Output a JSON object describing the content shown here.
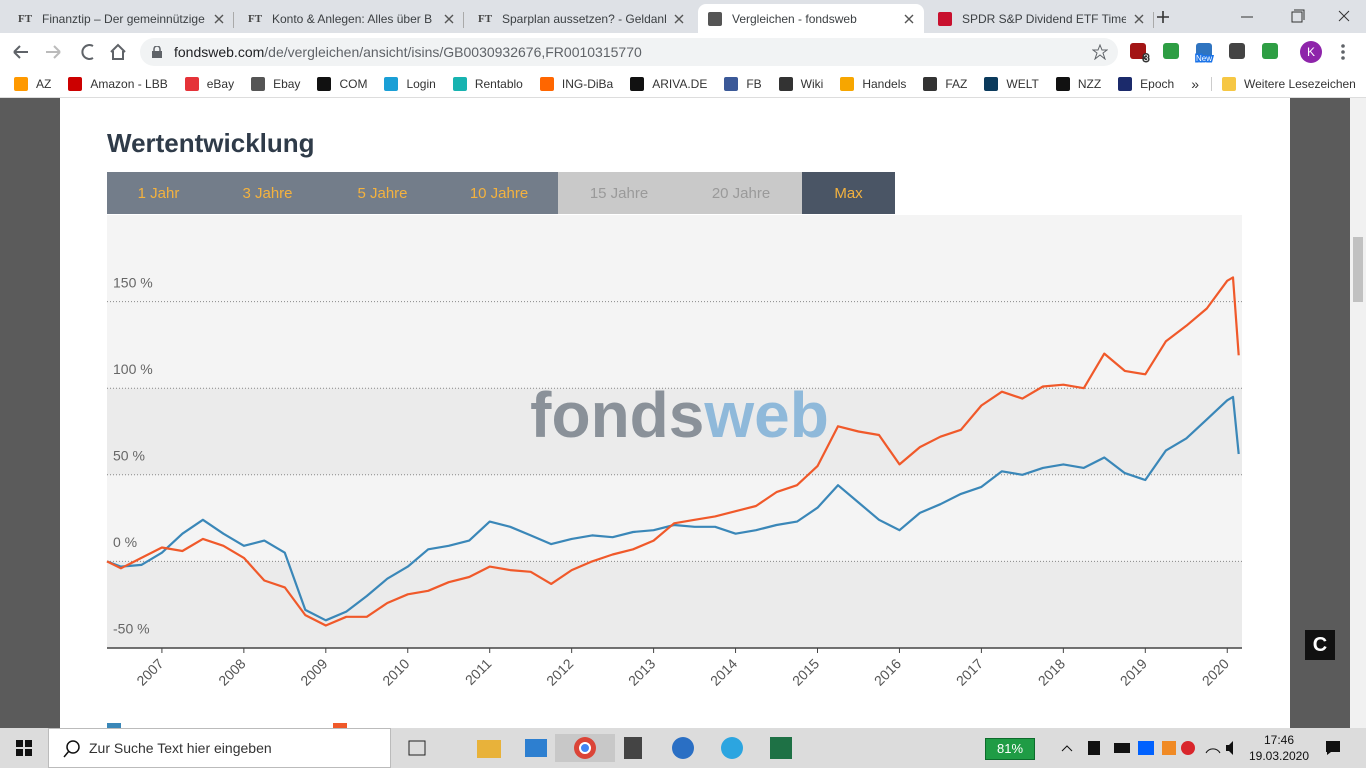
{
  "browser": {
    "tabs": [
      {
        "icon": "FT",
        "title": "Finanztip – Der gemeinnützige"
      },
      {
        "icon": "FT",
        "title": "Konto & Anlegen: Alles über B"
      },
      {
        "icon": "FT",
        "title": "Sparplan aussetzen? - Geldanla"
      },
      {
        "title": "Vergleichen - fondsweb"
      },
      {
        "title": "SPDR S&P Dividend ETF Times"
      }
    ],
    "active_tab": 3,
    "url_host": "fondsweb.com",
    "url_path": "/de/vergleichen/ansicht/isins/GB0030932676,FR0010315770",
    "extension_badges": [
      "3",
      "New"
    ],
    "profile": "K",
    "bookmarks": [
      "AZ",
      "Amazon - LBB",
      "eBay",
      "Ebay",
      "COM",
      "Login",
      "Rentablo",
      "ING-DiBa",
      "ARIVA.DE",
      "FB",
      "Wiki",
      "Handels",
      "FAZ",
      "WELT",
      "NZZ",
      "Epoch"
    ],
    "bookmarks_more": "»",
    "other_bookmarks": "Weitere Lesezeichen"
  },
  "page": {
    "title": "Wertentwicklung",
    "periods": [
      {
        "label": "1 Jahr",
        "state": "available"
      },
      {
        "label": "3 Jahre",
        "state": "available"
      },
      {
        "label": "5 Jahre",
        "state": "available"
      },
      {
        "label": "10 Jahre",
        "state": "available"
      },
      {
        "label": "15 Jahre",
        "state": "disabled"
      },
      {
        "label": "20 Jahre",
        "state": "disabled"
      },
      {
        "label": "Max",
        "state": "active"
      }
    ],
    "widget": "C"
  },
  "chart_data": {
    "type": "line",
    "watermark": [
      "fonds",
      "web"
    ],
    "x": [
      2006.33,
      2006.5,
      2006.75,
      2007,
      2007.25,
      2007.5,
      2007.75,
      2008,
      2008.25,
      2008.5,
      2008.75,
      2009,
      2009.25,
      2009.5,
      2009.75,
      2010,
      2010.25,
      2010.5,
      2010.75,
      2011,
      2011.25,
      2011.5,
      2011.75,
      2012,
      2012.25,
      2012.5,
      2012.75,
      2013,
      2013.25,
      2013.5,
      2013.75,
      2014,
      2014.25,
      2014.5,
      2014.75,
      2015,
      2015.25,
      2015.5,
      2015.75,
      2016,
      2016.25,
      2016.5,
      2016.75,
      2017,
      2017.25,
      2017.5,
      2017.75,
      2018,
      2018.25,
      2018.5,
      2018.75,
      2019,
      2019.25,
      2019.5,
      2019.75,
      2020,
      2020.07,
      2020.14
    ],
    "xlim": [
      2006.33,
      2020.18
    ],
    "xticks": [
      2007,
      2008,
      2009,
      2010,
      2011,
      2012,
      2013,
      2014,
      2015,
      2016,
      2017,
      2018,
      2019,
      2020
    ],
    "ylim": [
      -50,
      200
    ],
    "yticks": [
      {
        "value": -50,
        "label": "-50 %"
      },
      {
        "value": 0,
        "label": "0 %"
      },
      {
        "value": 50,
        "label": "50 %"
      },
      {
        "value": 100,
        "label": "100 %"
      },
      {
        "value": 150,
        "label": "150 %"
      }
    ],
    "grid": true,
    "bands": true,
    "series": [
      {
        "color": "#3a87b8",
        "values": [
          0,
          -3,
          -2,
          5,
          16,
          24,
          16,
          9,
          12,
          5,
          -28,
          -34,
          -29,
          -20,
          -10,
          -3,
          7,
          9,
          12,
          23,
          20,
          15,
          10,
          13,
          15,
          14,
          17,
          18,
          21,
          20,
          20,
          16,
          18,
          21,
          23,
          31,
          44,
          34,
          24,
          18,
          28,
          33,
          39,
          43,
          52,
          50,
          54,
          56,
          54,
          60,
          51,
          47,
          64,
          71,
          82,
          93,
          95,
          62
        ]
      },
      {
        "color": "#f0592a",
        "values": [
          0,
          -4,
          2,
          8,
          6,
          13,
          9,
          2,
          -11,
          -15,
          -31,
          -37,
          -32,
          -32,
          -24,
          -19,
          -17,
          -12,
          -9,
          -3,
          -5,
          -6,
          -13,
          -5,
          0,
          4,
          7,
          12,
          22,
          24,
          26,
          29,
          32,
          40,
          44,
          55,
          78,
          75,
          73,
          56,
          66,
          72,
          76,
          90,
          98,
          94,
          101,
          102,
          100,
          120,
          110,
          108,
          127,
          136,
          146,
          162,
          164,
          119
        ]
      }
    ]
  },
  "taskbar": {
    "search": "Zur Suche Text hier eingeben",
    "battery": "81%",
    "time": "17:46",
    "date": "19.03.2020"
  }
}
